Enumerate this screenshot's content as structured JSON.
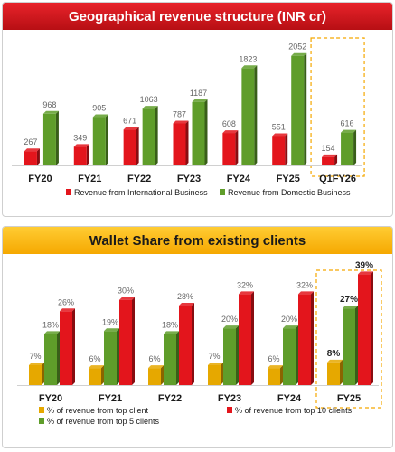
{
  "chart_data": [
    {
      "type": "bar",
      "title": "Geographical revenue structure (INR cr)",
      "categories": [
        "FY20",
        "FY21",
        "FY22",
        "FY23",
        "FY24",
        "FY25",
        "Q1FY26"
      ],
      "series": [
        {
          "name": "Revenue from International Business",
          "values": [
            267,
            349,
            671,
            787,
            608,
            551,
            154
          ],
          "color": "#e3151c"
        },
        {
          "name": "Revenue from Domestic Business",
          "values": [
            968,
            905,
            1063,
            1187,
            1823,
            2052,
            616
          ],
          "color": "#5f9d2a"
        }
      ],
      "xlabel": "",
      "ylabel": "",
      "ylim": [
        0,
        2200
      ],
      "grid": false,
      "legend": "bottom",
      "highlight_category": "Q1FY26",
      "highlight_color": "#f5a800"
    },
    {
      "type": "bar",
      "title": "Wallet Share from existing clients",
      "categories": [
        "FY20",
        "FY21",
        "FY22",
        "FY23",
        "FY24",
        "FY25"
      ],
      "series": [
        {
          "name": "% of revenue from top client",
          "values": [
            7,
            6,
            6,
            7,
            6,
            8
          ],
          "color": "#e6a800"
        },
        {
          "name": "% of revenue from top 5 clients",
          "values": [
            18,
            19,
            18,
            20,
            20,
            27
          ],
          "color": "#5f9d2a"
        },
        {
          "name": "% of revenue from top 10 clients",
          "values": [
            26,
            30,
            28,
            32,
            32,
            39
          ],
          "color": "#e3151c"
        }
      ],
      "value_suffix": "%",
      "xlabel": "",
      "ylabel": "",
      "ylim": [
        0,
        42
      ],
      "grid": false,
      "legend": "bottom",
      "highlight_category": "FY25",
      "highlight_color": "#f5a800"
    }
  ]
}
